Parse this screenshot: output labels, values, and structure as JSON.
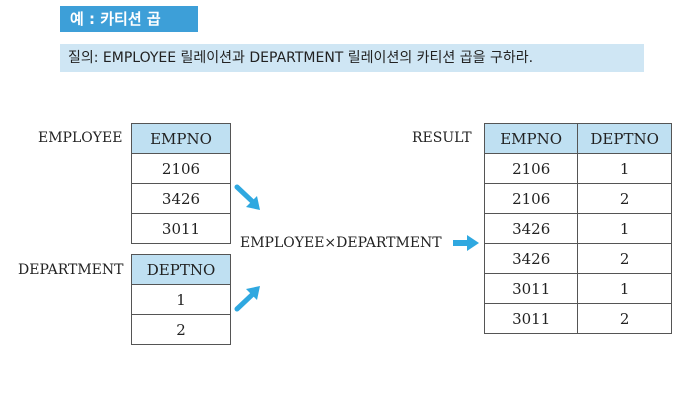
{
  "header": {
    "title": "예 : 카티션 곱",
    "query": "질의: EMPLOYEE 릴레이션과 DEPARTMENT 릴레이션의 카티션 곱을 구하라."
  },
  "employee": {
    "label": "EMPLOYEE",
    "column": "EMPNO",
    "rows": [
      "2106",
      "3426",
      "3011"
    ]
  },
  "department": {
    "label": "DEPARTMENT",
    "column": "DEPTNO",
    "rows": [
      "1",
      "2"
    ]
  },
  "operation": {
    "expression": "EMPLOYEE×DEPARTMENT"
  },
  "result": {
    "label": "RESULT",
    "columns": [
      "EMPNO",
      "DEPTNO"
    ],
    "rows": [
      [
        "2106",
        "1"
      ],
      [
        "2106",
        "2"
      ],
      [
        "3426",
        "1"
      ],
      [
        "3426",
        "2"
      ],
      [
        "3011",
        "1"
      ],
      [
        "3011",
        "2"
      ]
    ]
  },
  "colors": {
    "accent": "#3d9fd8",
    "header_fill": "#bfe0f2",
    "query_fill": "#cfe6f4",
    "arrow": "#2fa8e0"
  }
}
